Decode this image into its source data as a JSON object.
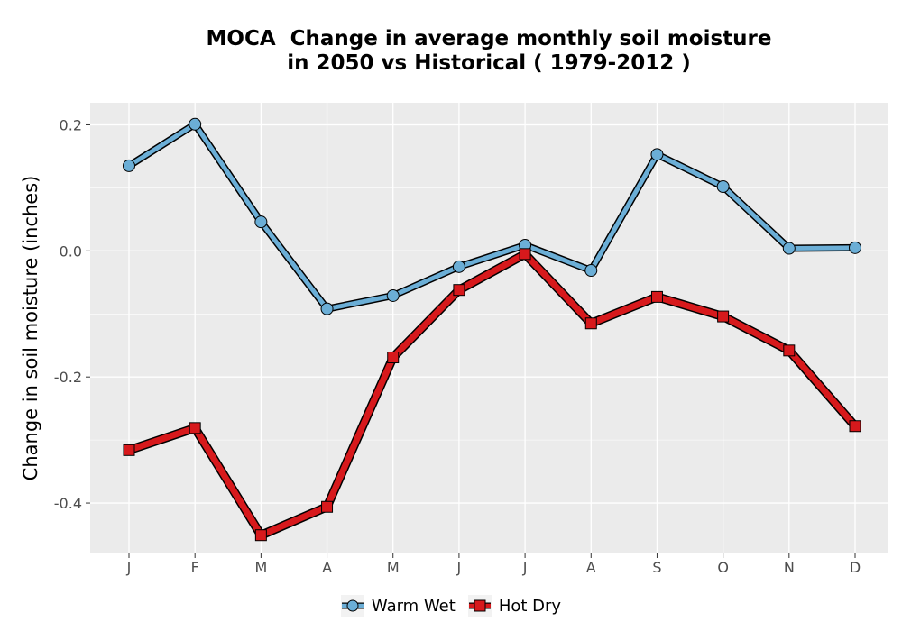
{
  "chart_data": {
    "type": "line",
    "title_lines": [
      "MOCA  Change in average monthly soil moisture",
      "in 2050 vs Historical ( 1979-2012 )"
    ],
    "xlabel": "",
    "ylabel": "Change in soil moisture (inches)",
    "categories": [
      "J",
      "F",
      "M",
      "A",
      "M",
      "J",
      "J",
      "A",
      "S",
      "O",
      "N",
      "D"
    ],
    "ylim": [
      -0.48,
      0.235
    ],
    "yticks": [
      0.2,
      0.0,
      -0.2,
      -0.4
    ],
    "ytick_labels": [
      "0.2",
      "0.0",
      "-0.2",
      "-0.4"
    ],
    "grid": true,
    "legend_position": "bottom",
    "series": [
      {
        "name": "Warm Wet",
        "marker": "circle",
        "color": "#6baed6",
        "values": [
          0.135,
          0.201,
          0.046,
          -0.092,
          -0.071,
          -0.025,
          0.009,
          -0.031,
          0.153,
          0.102,
          0.004,
          0.005
        ]
      },
      {
        "name": "Hot Dry",
        "marker": "square",
        "color": "#d7191c",
        "values": [
          -0.316,
          -0.281,
          -0.451,
          -0.406,
          -0.169,
          -0.062,
          -0.005,
          -0.115,
          -0.073,
          -0.104,
          -0.158,
          -0.278
        ]
      }
    ]
  }
}
